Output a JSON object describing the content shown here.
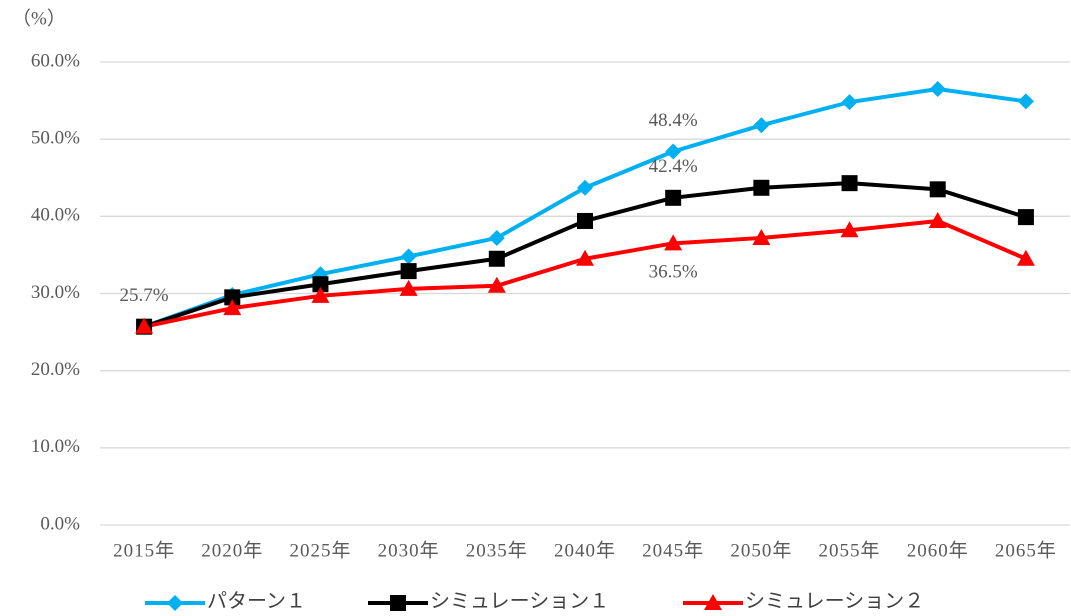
{
  "chart_data": {
    "type": "line",
    "y_unit_label": "（%）",
    "categories": [
      "2015年",
      "2020年",
      "2025年",
      "2030年",
      "2035年",
      "2040年",
      "2045年",
      "2050年",
      "2055年",
      "2060年",
      "2065年"
    ],
    "series": [
      {
        "name": "パターン１",
        "color": "#00b0f0",
        "marker": "diamond",
        "values": [
          25.7,
          29.8,
          32.5,
          34.8,
          37.2,
          43.7,
          48.4,
          51.8,
          54.8,
          56.5,
          54.9
        ],
        "value_labels": [
          "25.7%",
          null,
          null,
          null,
          null,
          null,
          "48.4%",
          null,
          null,
          null,
          null
        ]
      },
      {
        "name": "シミュレーション１",
        "color": "#000000",
        "marker": "square",
        "values": [
          25.7,
          29.5,
          31.2,
          32.9,
          34.5,
          39.4,
          42.4,
          43.7,
          44.3,
          43.5,
          39.9
        ],
        "value_labels": [
          null,
          null,
          null,
          null,
          null,
          null,
          "42.4%",
          null,
          null,
          null,
          null
        ]
      },
      {
        "name": "シミュレーション２",
        "color": "#ff0000",
        "marker": "triangle",
        "values": [
          25.7,
          28.1,
          29.7,
          30.6,
          31.0,
          34.5,
          36.5,
          37.2,
          38.2,
          39.4,
          34.5
        ],
        "value_labels": [
          null,
          null,
          null,
          null,
          null,
          null,
          "36.5%",
          null,
          null,
          null,
          null
        ]
      }
    ],
    "ylim": [
      0,
      60
    ],
    "yticks": [
      {
        "value": 0,
        "label": "0.0%"
      },
      {
        "value": 10,
        "label": "10.0%"
      },
      {
        "value": 20,
        "label": "20.0%"
      },
      {
        "value": 30,
        "label": "30.0%"
      },
      {
        "value": 40,
        "label": "40.0%"
      },
      {
        "value": 50,
        "label": "50.0%"
      },
      {
        "value": 60,
        "label": "60.0%"
      }
    ],
    "grid": true,
    "legend": "bottom"
  }
}
